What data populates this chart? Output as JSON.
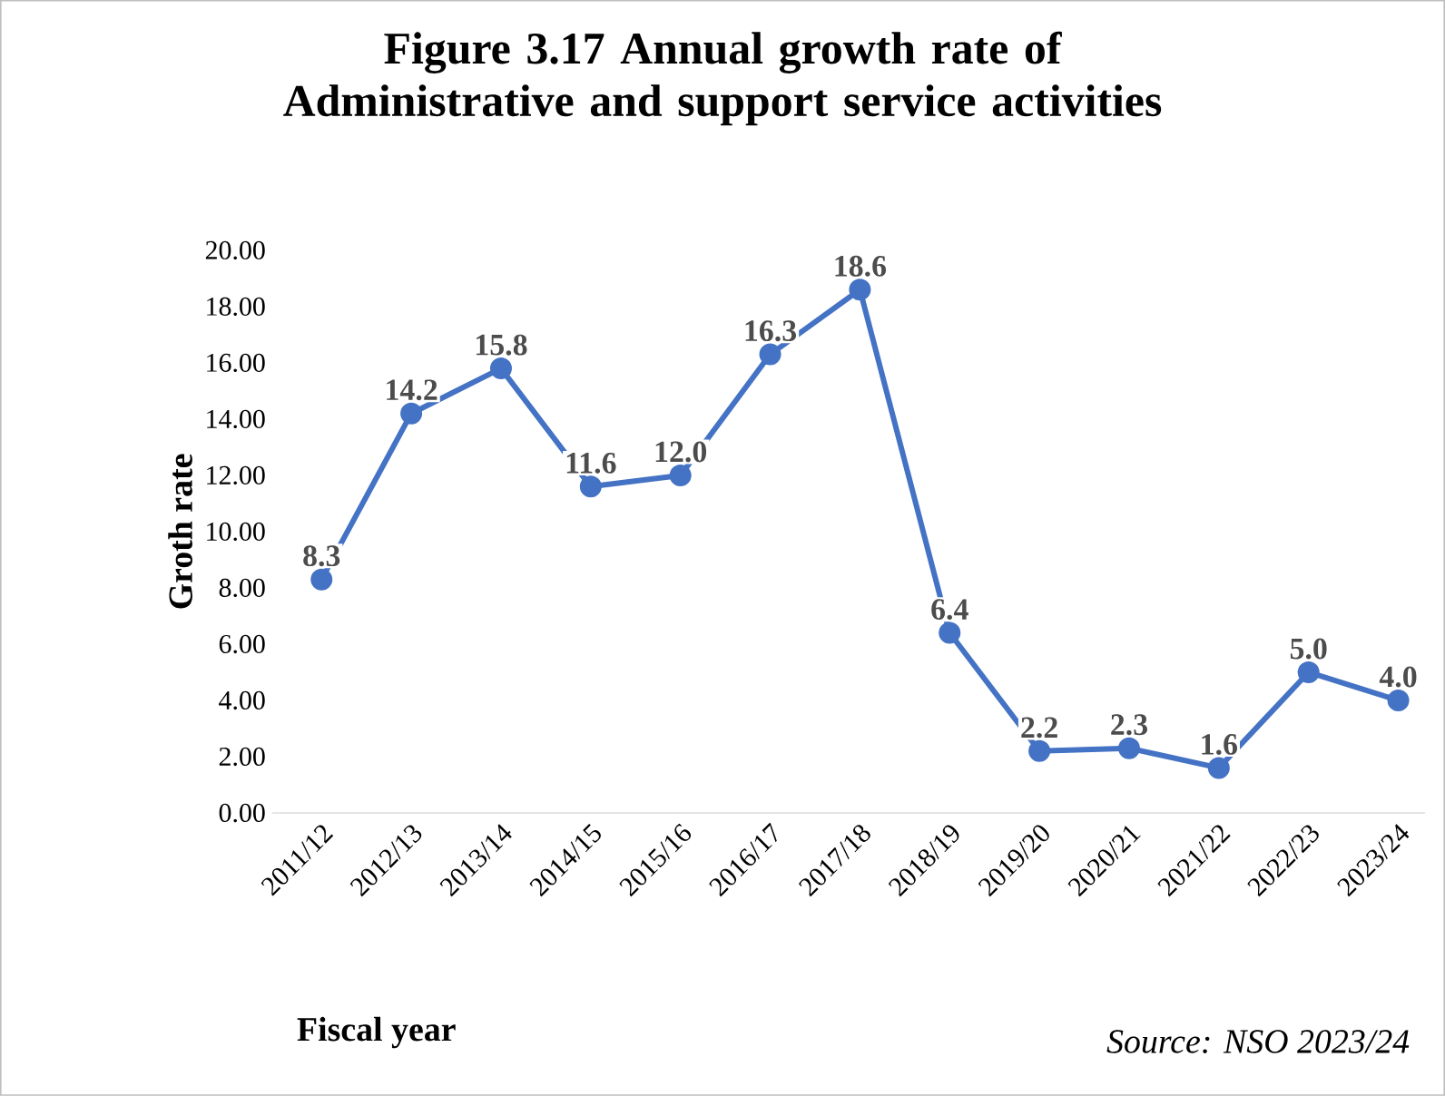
{
  "chart_data": {
    "type": "line",
    "title": "Figure 3.17 Annual growth rate of Administrative and support service activities",
    "xlabel": "Fiscal year",
    "ylabel": "Groth rate",
    "categories": [
      "2011/12",
      "2012/13",
      "2013/14",
      "2014/15",
      "2015/16",
      "2016/17",
      "2017/18",
      "2018/19",
      "2019/20",
      "2020/21",
      "2021/22",
      "2022/23",
      "2023/24"
    ],
    "series": [
      {
        "color": "#4472c4",
        "values": [
          8.3,
          14.2,
          15.8,
          11.6,
          12.0,
          16.3,
          18.6,
          6.4,
          2.2,
          2.3,
          1.6,
          5.0,
          4.0
        ],
        "value_labels": [
          "8.3",
          "14.2",
          "15.8",
          "11.6",
          "12.0",
          "16.3",
          "18.6",
          "6.4",
          "2.2",
          "2.3",
          "1.6",
          "5.0",
          "4.0"
        ]
      }
    ],
    "ylim": [
      0,
      20
    ],
    "yticks": [
      {
        "value": 0,
        "label": "0.00"
      },
      {
        "value": 2,
        "label": "2.00"
      },
      {
        "value": 4,
        "label": "4.00"
      },
      {
        "value": 6,
        "label": "6.00"
      },
      {
        "value": 8,
        "label": "8.00"
      },
      {
        "value": 10,
        "label": "10.00"
      },
      {
        "value": 12,
        "label": "12.00"
      },
      {
        "value": 14,
        "label": "14.00"
      },
      {
        "value": 16,
        "label": "16.00"
      },
      {
        "value": 18,
        "label": "18.00"
      },
      {
        "value": 20,
        "label": "20.00"
      }
    ],
    "marker": "circle",
    "line_style": "solid",
    "annotations": [
      "*Source: NSO 2023/24*"
    ]
  }
}
